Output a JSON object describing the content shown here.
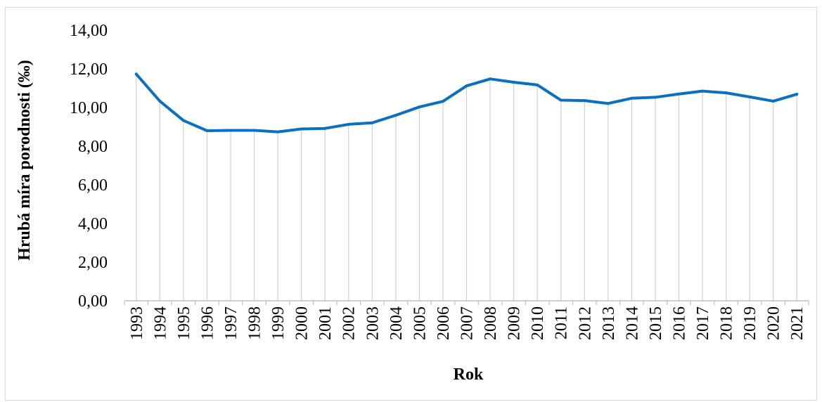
{
  "chart_data": {
    "type": "line",
    "title": "",
    "xlabel": "Rok",
    "ylabel": "Hrubá míra porodnosti (‰)",
    "categories": [
      "1993",
      "1994",
      "1995",
      "1996",
      "1997",
      "1998",
      "1999",
      "2000",
      "2001",
      "2002",
      "2003",
      "2004",
      "2005",
      "2006",
      "2007",
      "2008",
      "2009",
      "2010",
      "2011",
      "2012",
      "2013",
      "2014",
      "2015",
      "2016",
      "2017",
      "2018",
      "2019",
      "2020",
      "2021"
    ],
    "series": [
      {
        "values": [
          11.73,
          10.33,
          9.33,
          8.8,
          8.82,
          8.82,
          8.74,
          8.89,
          8.92,
          9.13,
          9.21,
          9.6,
          10.03,
          10.32,
          11.12,
          11.48,
          11.31,
          11.17,
          10.38,
          10.36,
          10.21,
          10.48,
          10.53,
          10.7,
          10.85,
          10.76,
          10.55,
          10.33,
          10.69
        ]
      }
    ],
    "ylim": [
      0,
      14
    ],
    "yticks": [
      "0,00",
      "2,00",
      "4,00",
      "6,00",
      "8,00",
      "10,00",
      "12,00",
      "14,00"
    ],
    "grid": "vertical drop lines per category",
    "legend": "none",
    "colors": {
      "line": "#0a70bf",
      "droplines": "#d0d0d0",
      "axis": "#bfbfbf",
      "frame": "#d9d9d9"
    }
  }
}
